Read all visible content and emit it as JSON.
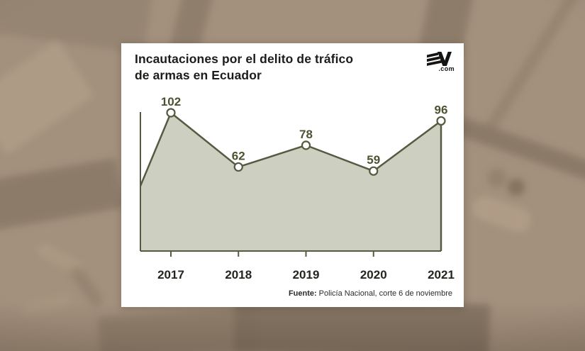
{
  "header": {
    "title_lines": [
      "Incautaciones por el delito de tráfico",
      "de armas en Ecuador"
    ],
    "logo": {
      "brand": "EV",
      "dotcom": ".com"
    }
  },
  "chart_data": {
    "type": "area",
    "title": "Incautaciones por el delito de tráfico de armas en Ecuador",
    "categories": [
      "2017",
      "2018",
      "2019",
      "2020",
      "2021"
    ],
    "values": [
      102,
      62,
      78,
      59,
      96
    ],
    "edge_start_value": 48,
    "xlabel": "",
    "ylabel": "",
    "ylim": [
      0,
      110
    ],
    "grid": false,
    "legend": "none",
    "value_labels_shown": true,
    "marker": "white-circle"
  },
  "footer": {
    "source_label": "Fuente:",
    "source_text": "Policía Nacional, corte 6 de noviembre"
  },
  "colors": {
    "background_tan": "#a3907d",
    "card_white": "#ffffff",
    "line_olive": "#565a40",
    "fill_sage": "#cdcfc1",
    "value_label_olive": "#4e5231",
    "axis_text_dark": "#26241f",
    "title_dark": "#1d1c1a",
    "logo_black": "#151412"
  }
}
